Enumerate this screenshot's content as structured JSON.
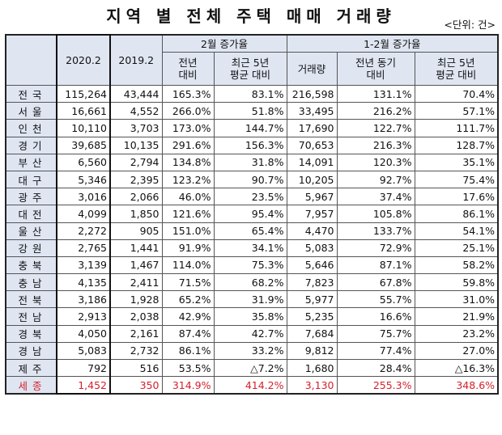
{
  "title": "지역 별 전체 주택 매매 거래량",
  "unit": "<단위: 건>",
  "headers": {
    "col2020": "2020.2",
    "col2019": "2019.2",
    "group_feb": "2월 증가율",
    "group_janfeb": "1-2월 증가율",
    "yoy": "전년\n대비",
    "avg5": "최근 5년\n평균 대비",
    "volume": "거래량",
    "yoy_same": "전년 동기\n대비",
    "avg5b": "최근 5년\n평균 대비"
  },
  "rows": [
    {
      "region": "전국",
      "v2020": "115,264",
      "v2019": "43,444",
      "feb_yoy": "165.3%",
      "feb_avg5": "83.1%",
      "vol": "216,598",
      "jf_yoy": "131.1%",
      "jf_avg5": "70.4%"
    },
    {
      "region": "서울",
      "v2020": "16,661",
      "v2019": "4,552",
      "feb_yoy": "266.0%",
      "feb_avg5": "51.8%",
      "vol": "33,495",
      "jf_yoy": "216.2%",
      "jf_avg5": "57.1%"
    },
    {
      "region": "인천",
      "v2020": "10,110",
      "v2019": "3,703",
      "feb_yoy": "173.0%",
      "feb_avg5": "144.7%",
      "vol": "17,690",
      "jf_yoy": "122.7%",
      "jf_avg5": "111.7%"
    },
    {
      "region": "경기",
      "v2020": "39,685",
      "v2019": "10,135",
      "feb_yoy": "291.6%",
      "feb_avg5": "156.3%",
      "vol": "70,653",
      "jf_yoy": "216.3%",
      "jf_avg5": "128.7%"
    },
    {
      "region": "부산",
      "v2020": "6,560",
      "v2019": "2,794",
      "feb_yoy": "134.8%",
      "feb_avg5": "31.8%",
      "vol": "14,091",
      "jf_yoy": "120.3%",
      "jf_avg5": "35.1%"
    },
    {
      "region": "대구",
      "v2020": "5,346",
      "v2019": "2,395",
      "feb_yoy": "123.2%",
      "feb_avg5": "90.7%",
      "vol": "10,205",
      "jf_yoy": "92.7%",
      "jf_avg5": "75.4%"
    },
    {
      "region": "광주",
      "v2020": "3,016",
      "v2019": "2,066",
      "feb_yoy": "46.0%",
      "feb_avg5": "23.5%",
      "vol": "5,967",
      "jf_yoy": "37.4%",
      "jf_avg5": "17.6%"
    },
    {
      "region": "대전",
      "v2020": "4,099",
      "v2019": "1,850",
      "feb_yoy": "121.6%",
      "feb_avg5": "95.4%",
      "vol": "7,957",
      "jf_yoy": "105.8%",
      "jf_avg5": "86.1%"
    },
    {
      "region": "울산",
      "v2020": "2,272",
      "v2019": "905",
      "feb_yoy": "151.0%",
      "feb_avg5": "65.4%",
      "vol": "4,470",
      "jf_yoy": "133.7%",
      "jf_avg5": "54.1%"
    },
    {
      "region": "강원",
      "v2020": "2,765",
      "v2019": "1,441",
      "feb_yoy": "91.9%",
      "feb_avg5": "34.1%",
      "vol": "5,083",
      "jf_yoy": "72.9%",
      "jf_avg5": "25.1%"
    },
    {
      "region": "충북",
      "v2020": "3,139",
      "v2019": "1,467",
      "feb_yoy": "114.0%",
      "feb_avg5": "75.3%",
      "vol": "5,646",
      "jf_yoy": "87.1%",
      "jf_avg5": "58.2%"
    },
    {
      "region": "충남",
      "v2020": "4,135",
      "v2019": "2,411",
      "feb_yoy": "71.5%",
      "feb_avg5": "68.2%",
      "vol": "7,823",
      "jf_yoy": "67.8%",
      "jf_avg5": "59.8%"
    },
    {
      "region": "전북",
      "v2020": "3,186",
      "v2019": "1,928",
      "feb_yoy": "65.2%",
      "feb_avg5": "31.9%",
      "vol": "5,977",
      "jf_yoy": "55.7%",
      "jf_avg5": "31.0%"
    },
    {
      "region": "전남",
      "v2020": "2,913",
      "v2019": "2,038",
      "feb_yoy": "42.9%",
      "feb_avg5": "35.8%",
      "vol": "5,235",
      "jf_yoy": "16.6%",
      "jf_avg5": "21.9%"
    },
    {
      "region": "경북",
      "v2020": "4,050",
      "v2019": "2,161",
      "feb_yoy": "87.4%",
      "feb_avg5": "42.7%",
      "vol": "7,684",
      "jf_yoy": "75.7%",
      "jf_avg5": "23.2%"
    },
    {
      "region": "경남",
      "v2020": "5,083",
      "v2019": "2,732",
      "feb_yoy": "86.1%",
      "feb_avg5": "33.2%",
      "vol": "9,812",
      "jf_yoy": "77.4%",
      "jf_avg5": "27.0%"
    },
    {
      "region": "제주",
      "v2020": "792",
      "v2019": "516",
      "feb_yoy": "53.5%",
      "feb_avg5": "△7.2%",
      "vol": "1,680",
      "jf_yoy": "28.4%",
      "jf_avg5": "△16.3%"
    },
    {
      "region": "세종",
      "v2020": "1,452",
      "v2019": "350",
      "feb_yoy": "314.9%",
      "feb_avg5": "414.2%",
      "vol": "3,130",
      "jf_yoy": "255.3%",
      "jf_avg5": "348.6%"
    }
  ],
  "highlight_color": "#d5202c",
  "header_bg": "#dfe6f2"
}
